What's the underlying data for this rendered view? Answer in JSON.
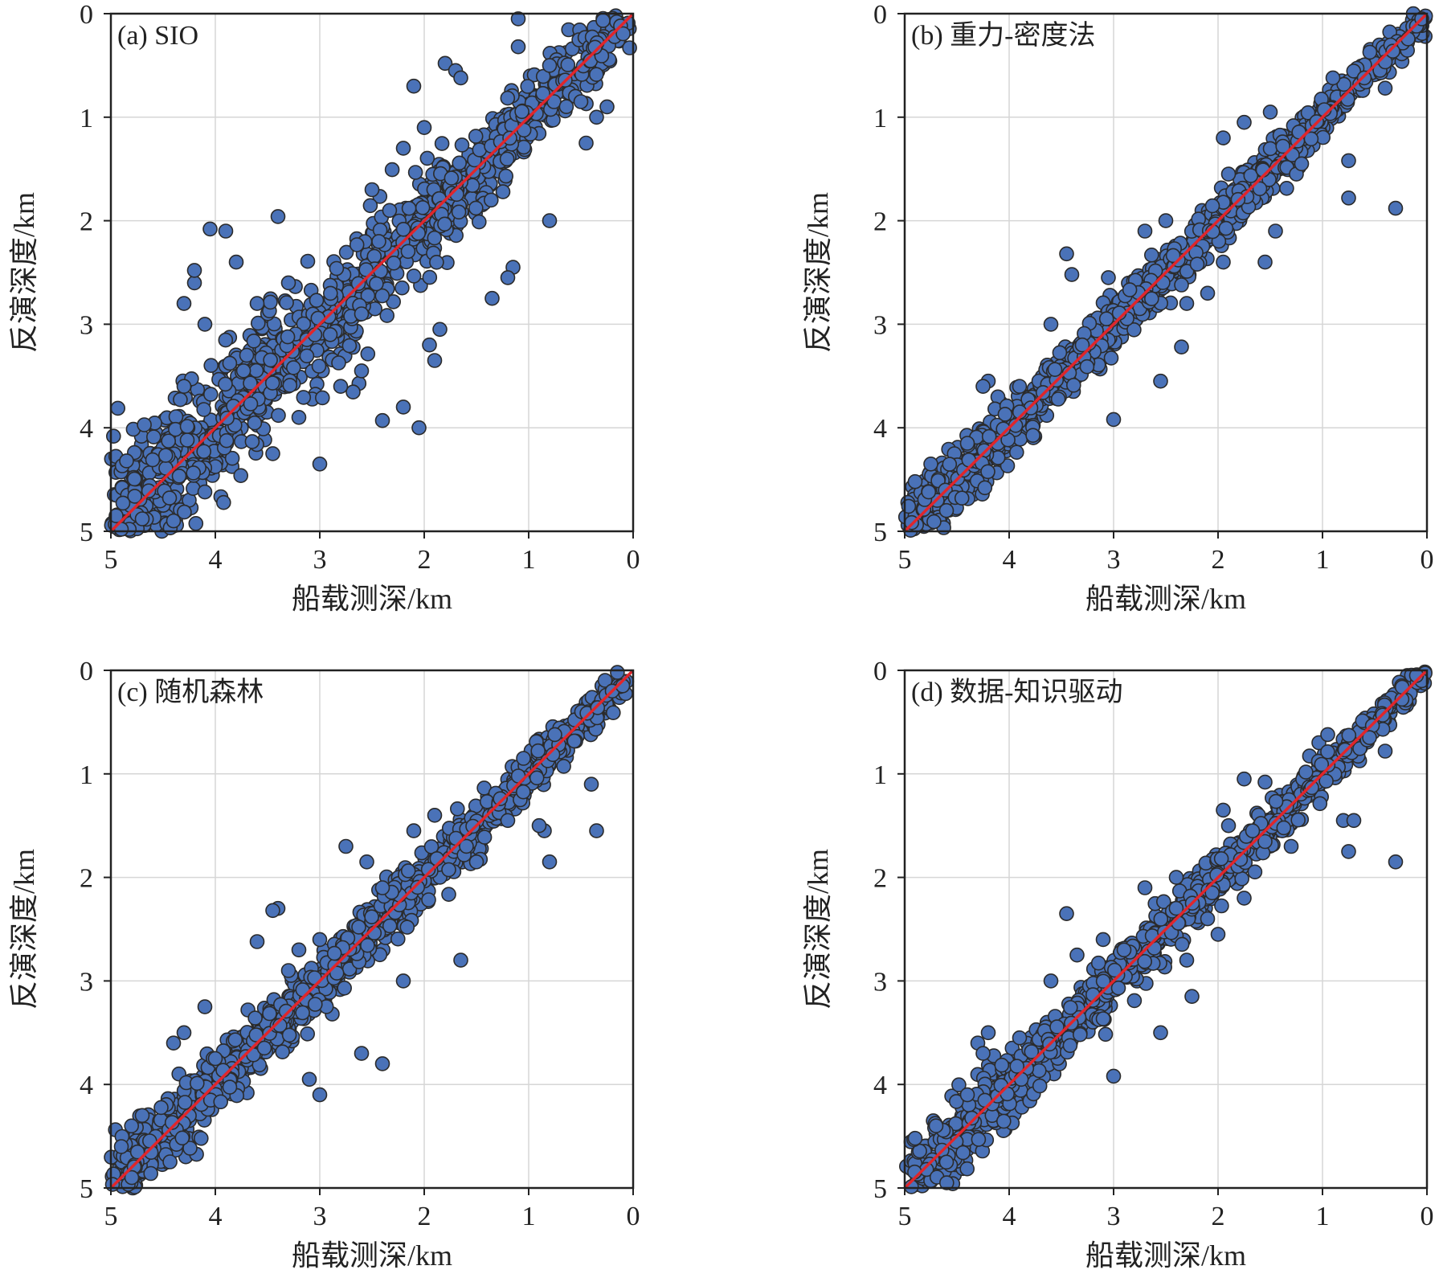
{
  "figure": {
    "panels": [
      {
        "label": "(a) SIO",
        "xlabel": "船载测深/km",
        "ylabel": "反演深度/km"
      },
      {
        "label": "(b) 重力-密度法",
        "xlabel": "船载测深/km",
        "ylabel": "反演深度/km"
      },
      {
        "label": "(c) 随机森林",
        "xlabel": "船载测深/km",
        "ylabel": "反演深度/km"
      },
      {
        "label": "(d) 数据-知识驱动",
        "xlabel": "船载测深/km",
        "ylabel": "反演深度/km"
      }
    ]
  },
  "chart_data": [
    {
      "type": "scatter",
      "title": "(a) SIO",
      "xlabel": "船载测深/km",
      "ylabel": "反演深度/km",
      "xlim": [
        5,
        0
      ],
      "ylim": [
        5,
        0
      ],
      "x_reversed": true,
      "y_reversed": true,
      "xticks": [
        5,
        4,
        3,
        2,
        1,
        0
      ],
      "yticks": [
        0,
        1,
        2,
        3,
        4,
        5
      ],
      "grid": true,
      "marker_color": "#4a72b8",
      "marker_edge": "#2b2b2b",
      "reference_line": {
        "from": [
          5,
          5
        ],
        "to": [
          0,
          0
        ],
        "color": "#e0262b"
      },
      "spread_km": 0.28,
      "points": [
        [
          4.95,
          4.85
        ],
        [
          4.9,
          4.98
        ],
        [
          4.85,
          4.32
        ],
        [
          4.7,
          4.88
        ],
        [
          4.6,
          4.31
        ],
        [
          4.4,
          4.9
        ],
        [
          4.3,
          3.6
        ],
        [
          4.1,
          4.62
        ],
        [
          4.05,
          2.08
        ],
        [
          4.2,
          2.6
        ],
        [
          4.2,
          2.48
        ],
        [
          4.3,
          2.8
        ],
        [
          3.6,
          2.8
        ],
        [
          3.4,
          1.96
        ],
        [
          3.0,
          4.35
        ],
        [
          2.4,
          3.93
        ],
        [
          2.2,
          3.8
        ],
        [
          2.05,
          4.0
        ],
        [
          2.1,
          0.7
        ],
        [
          1.8,
          0.48
        ],
        [
          1.7,
          0.55
        ],
        [
          1.65,
          0.62
        ],
        [
          1.1,
          0.05
        ],
        [
          1.1,
          0.32
        ],
        [
          0.8,
          0.5
        ],
        [
          0.5,
          0.85
        ],
        [
          0.45,
          1.25
        ],
        [
          0.35,
          1.0
        ],
        [
          0.25,
          0.9
        ],
        [
          0.8,
          2.0
        ],
        [
          1.15,
          2.45
        ],
        [
          1.2,
          2.55
        ],
        [
          1.35,
          2.75
        ],
        [
          1.9,
          3.35
        ],
        [
          1.95,
          3.2
        ],
        [
          1.85,
          3.05
        ],
        [
          2.8,
          3.6
        ],
        [
          2.6,
          3.45
        ],
        [
          3.2,
          3.9
        ],
        [
          3.45,
          4.25
        ],
        [
          2.5,
          1.7
        ],
        [
          2.2,
          1.3
        ],
        [
          2.0,
          1.1
        ],
        [
          2.6,
          2.9
        ],
        [
          3.9,
          2.1
        ],
        [
          3.8,
          2.4
        ],
        [
          4.1,
          3.0
        ],
        [
          3.7,
          3.3
        ],
        [
          3.3,
          2.6
        ],
        [
          2.9,
          3.1
        ]
      ]
    },
    {
      "type": "scatter",
      "title": "(b) 重力-密度法",
      "xlabel": "船载测深/km",
      "ylabel": "反演深度/km",
      "xlim": [
        5,
        0
      ],
      "ylim": [
        5,
        0
      ],
      "x_reversed": true,
      "y_reversed": true,
      "xticks": [
        5,
        4,
        3,
        2,
        1,
        0
      ],
      "yticks": [
        0,
        1,
        2,
        3,
        4,
        5
      ],
      "grid": true,
      "marker_color": "#4a72b8",
      "marker_edge": "#2b2b2b",
      "reference_line": {
        "from": [
          5,
          5
        ],
        "to": [
          0,
          0
        ],
        "color": "#e0262b"
      },
      "spread_km": 0.13,
      "points": [
        [
          4.9,
          4.52
        ],
        [
          4.75,
          4.35
        ],
        [
          4.2,
          3.55
        ],
        [
          4.25,
          3.6
        ],
        [
          3.45,
          2.32
        ],
        [
          3.4,
          2.52
        ],
        [
          3.05,
          2.55
        ],
        [
          2.55,
          3.55
        ],
        [
          3.0,
          3.92
        ],
        [
          2.35,
          3.22
        ],
        [
          2.2,
          2.42
        ],
        [
          2.35,
          2.62
        ],
        [
          1.95,
          2.4
        ],
        [
          1.55,
          2.4
        ],
        [
          1.45,
          2.1
        ],
        [
          1.9,
          1.55
        ],
        [
          1.75,
          1.05
        ],
        [
          1.5,
          0.95
        ],
        [
          1.95,
          1.2
        ],
        [
          0.75,
          1.42
        ],
        [
          0.75,
          1.78
        ],
        [
          0.3,
          1.88
        ],
        [
          0.1,
          0.12
        ],
        [
          0.05,
          0.05
        ],
        [
          0.9,
          0.62
        ],
        [
          0.6,
          0.62
        ],
        [
          0.4,
          0.72
        ],
        [
          3.6,
          3.0
        ],
        [
          2.7,
          2.1
        ],
        [
          2.5,
          2.0
        ],
        [
          3.3,
          3.2
        ],
        [
          2.3,
          2.8
        ],
        [
          2.1,
          2.7
        ],
        [
          1.25,
          1.55
        ],
        [
          1.2,
          1.45
        ],
        [
          4.4,
          4.15
        ],
        [
          4.6,
          4.8
        ],
        [
          3.9,
          3.6
        ]
      ]
    },
    {
      "type": "scatter",
      "title": "(c) 随机森林",
      "xlabel": "船载测深/km",
      "ylabel": "反演深度/km",
      "xlim": [
        5,
        0
      ],
      "ylim": [
        5,
        0
      ],
      "x_reversed": true,
      "y_reversed": true,
      "xticks": [
        5,
        4,
        3,
        2,
        1,
        0
      ],
      "yticks": [
        0,
        1,
        2,
        3,
        4,
        5
      ],
      "grid": true,
      "marker_color": "#4a72b8",
      "marker_edge": "#2b2b2b",
      "reference_line": {
        "from": [
          5,
          5
        ],
        "to": [
          0,
          0
        ],
        "color": "#e0262b"
      },
      "spread_km": 0.14,
      "points": [
        [
          4.9,
          4.6
        ],
        [
          4.7,
          4.3
        ],
        [
          4.4,
          3.6
        ],
        [
          4.3,
          3.5
        ],
        [
          4.1,
          3.25
        ],
        [
          3.6,
          2.62
        ],
        [
          3.4,
          2.3
        ],
        [
          3.45,
          2.32
        ],
        [
          3.2,
          2.7
        ],
        [
          2.75,
          1.7
        ],
        [
          2.55,
          1.85
        ],
        [
          2.4,
          3.8
        ],
        [
          3.1,
          3.95
        ],
        [
          3.0,
          4.1
        ],
        [
          2.6,
          3.7
        ],
        [
          2.2,
          3.0
        ],
        [
          1.65,
          2.8
        ],
        [
          0.8,
          1.85
        ],
        [
          0.85,
          1.55
        ],
        [
          0.9,
          1.5
        ],
        [
          0.35,
          1.55
        ],
        [
          0.4,
          1.1
        ],
        [
          1.05,
          0.85
        ],
        [
          0.75,
          0.62
        ],
        [
          0.2,
          0.2
        ],
        [
          0.1,
          0.15
        ],
        [
          2.1,
          1.55
        ],
        [
          1.9,
          1.4
        ],
        [
          3.0,
          2.6
        ],
        [
          3.3,
          2.9
        ],
        [
          2.4,
          2.1
        ],
        [
          1.5,
          1.85
        ],
        [
          1.2,
          1.45
        ],
        [
          4.8,
          4.9
        ],
        [
          4.0,
          3.75
        ]
      ]
    },
    {
      "type": "scatter",
      "title": "(d) 数据-知识驱动",
      "xlabel": "船载测深/km",
      "ylabel": "反演深度/km",
      "xlim": [
        5,
        0
      ],
      "ylim": [
        5,
        0
      ],
      "x_reversed": true,
      "y_reversed": true,
      "xticks": [
        5,
        4,
        3,
        2,
        1,
        0
      ],
      "yticks": [
        0,
        1,
        2,
        3,
        4,
        5
      ],
      "grid": true,
      "marker_color": "#4a72b8",
      "marker_edge": "#2b2b2b",
      "reference_line": {
        "from": [
          5,
          5
        ],
        "to": [
          0,
          0
        ],
        "color": "#e0262b"
      },
      "spread_km": 0.14,
      "points": [
        [
          4.9,
          4.52
        ],
        [
          4.7,
          4.4
        ],
        [
          4.3,
          3.6
        ],
        [
          4.2,
          3.5
        ],
        [
          4.25,
          3.7
        ],
        [
          3.45,
          2.35
        ],
        [
          3.35,
          2.75
        ],
        [
          3.1,
          2.6
        ],
        [
          2.9,
          2.7
        ],
        [
          2.55,
          3.5
        ],
        [
          3.0,
          3.92
        ],
        [
          2.25,
          3.15
        ],
        [
          2.1,
          2.4
        ],
        [
          2.0,
          2.55
        ],
        [
          1.75,
          2.2
        ],
        [
          1.9,
          1.5
        ],
        [
          1.75,
          1.05
        ],
        [
          1.55,
          1.08
        ],
        [
          1.95,
          1.35
        ],
        [
          0.8,
          1.45
        ],
        [
          0.7,
          1.45
        ],
        [
          0.75,
          1.75
        ],
        [
          0.3,
          1.85
        ],
        [
          0.05,
          0.1
        ],
        [
          0.1,
          0.05
        ],
        [
          0.95,
          0.62
        ],
        [
          0.55,
          0.65
        ],
        [
          0.4,
          0.78
        ],
        [
          3.6,
          3.0
        ],
        [
          2.7,
          2.1
        ],
        [
          2.4,
          2.0
        ],
        [
          2.3,
          2.8
        ],
        [
          4.4,
          4.1
        ],
        [
          4.6,
          4.75
        ],
        [
          3.9,
          3.55
        ],
        [
          1.3,
          1.7
        ]
      ]
    }
  ]
}
